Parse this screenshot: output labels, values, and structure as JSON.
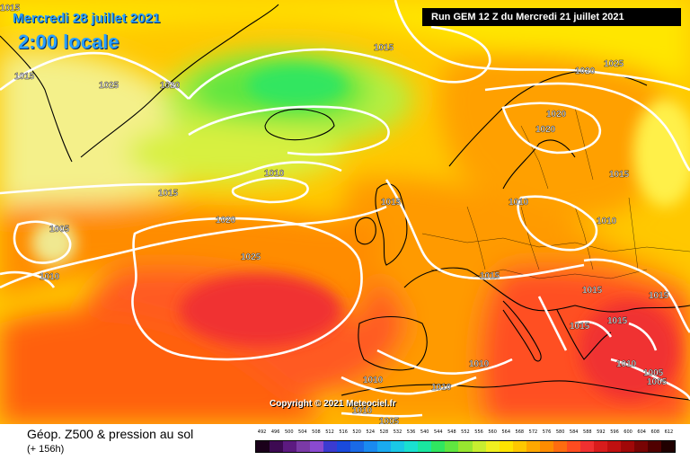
{
  "header": {
    "date": "Mercredi 28 juillet 2021",
    "time": "2:00 locale",
    "run": "Run GEM 12 Z du Mercredi 21 juillet 2021"
  },
  "copyright": "Copyright © 2021 Meteociel.fr",
  "footer": {
    "title": "Géop. Z500 & pression au sol",
    "subtitle": "(+ 156h)"
  },
  "scale": {
    "labels": [
      "492",
      "496",
      "500",
      "504",
      "508",
      "512",
      "516",
      "520",
      "524",
      "528",
      "532",
      "536",
      "540",
      "544",
      "548",
      "552",
      "556",
      "560",
      "564",
      "568",
      "572",
      "576",
      "580",
      "584",
      "588",
      "592",
      "596",
      "600",
      "604",
      "608",
      "612"
    ],
    "colors": [
      "#1a001a",
      "#3d0a52",
      "#5c1a80",
      "#7a3aa6",
      "#8a4ad0",
      "#3b3bd0",
      "#1a4adc",
      "#1a6ae6",
      "#1a8af0",
      "#1aaaf0",
      "#1ac8e6",
      "#1ae0d0",
      "#1ae6a0",
      "#30e660",
      "#60e640",
      "#98e630",
      "#c8ee30",
      "#f0f020",
      "#ffe400",
      "#ffc800",
      "#ffa800",
      "#ff8c00",
      "#ff6c10",
      "#ff4c20",
      "#f03030",
      "#d81c1c",
      "#c01010",
      "#a00808",
      "#780404",
      "#500000",
      "#200000"
    ]
  },
  "isobars": [
    "1015",
    "1025",
    "1020",
    "1015",
    "1020",
    "1025",
    "1020",
    "1020",
    "1015",
    "1010",
    "1015",
    "1020",
    "1005",
    "1010",
    "1025",
    "1010",
    "1015",
    "1015",
    "1010",
    "1015",
    "1015",
    "1015",
    "1010",
    "1010",
    "1010",
    "1010",
    "1005",
    "1005",
    "1010",
    "1005",
    "1015",
    "1015"
  ]
}
